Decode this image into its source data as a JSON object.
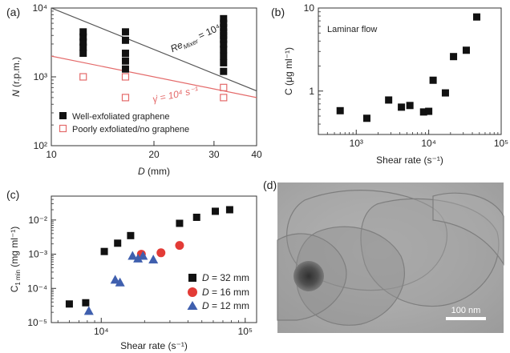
{
  "colors": {
    "black": "#111111",
    "red": "#e33b36",
    "blue": "#3f5fae",
    "pink": "#e46a6a",
    "grayLine": "#555555"
  },
  "panel_labels": [
    "(a)",
    "(b)",
    "(c)",
    "(d)"
  ],
  "chart_data": [
    {
      "id": "a",
      "type": "scatter",
      "xlabel": "D (mm)",
      "ylabel": "N (r.p.m.)",
      "xlog": true,
      "ylog": true,
      "xlim": [
        10,
        40
      ],
      "ylim": [
        100,
        10000
      ],
      "xticks": [
        10,
        20,
        30,
        40
      ],
      "xtick_labels": [
        "10",
        "20",
        "30",
        "40"
      ],
      "yticks": [
        100,
        1000,
        10000
      ],
      "ytick_labels": [
        "10²",
        "10³",
        "10⁴"
      ],
      "series": [
        {
          "name": "Well-exfoliated graphene",
          "marker": "square-filled",
          "color": "#111111",
          "points": [
            [
              12.4,
              2200
            ],
            [
              12.4,
              2700
            ],
            [
              12.4,
              3200
            ],
            [
              12.4,
              3800
            ],
            [
              12.4,
              4500
            ],
            [
              16.5,
              1300
            ],
            [
              16.5,
              1700
            ],
            [
              16.5,
              2200
            ],
            [
              16.5,
              3400
            ],
            [
              16.5,
              4500
            ],
            [
              32,
              1200
            ],
            [
              32,
              1600
            ],
            [
              32,
              2000
            ],
            [
              32,
              2500
            ],
            [
              32,
              3000
            ],
            [
              32,
              3500
            ],
            [
              32,
              4000
            ],
            [
              32,
              4500
            ],
            [
              32,
              5200
            ],
            [
              32,
              6000
            ],
            [
              32,
              7000
            ]
          ]
        },
        {
          "name": "Poorly exfoliated/no graphene",
          "marker": "square-open",
          "color": "#e46a6a",
          "points": [
            [
              12.4,
              1000
            ],
            [
              16.5,
              1000
            ],
            [
              16.5,
              500
            ],
            [
              32,
              700
            ],
            [
              32,
              500
            ]
          ]
        }
      ],
      "lines": [
        {
          "label": "Re_Mixer = 10⁴",
          "color": "#555555",
          "points": [
            [
              10,
              10000
            ],
            [
              40,
              625
            ]
          ]
        },
        {
          "label": "γ̇ = 10⁴ s⁻¹",
          "color": "#e46a6a",
          "points": [
            [
              10,
              2000
            ],
            [
              40,
              500
            ]
          ]
        }
      ],
      "annotations": {
        "re_main": "Re",
        "re_sub": "Mixer",
        "re_value": " = 10⁴",
        "gamma": "γ̇ = 10⁴ s⁻¹"
      }
    },
    {
      "id": "b",
      "type": "scatter",
      "xlabel": "Shear rate (s⁻¹)",
      "ylabel": "C (μg ml⁻¹)",
      "xlog": true,
      "ylog": true,
      "xlim": [
        300,
        100000
      ],
      "ylim": [
        0.3,
        10
      ],
      "xticks": [
        1000,
        10000,
        100000
      ],
      "xtick_labels": [
        "10³",
        "10⁴",
        "10⁵"
      ],
      "yticks": [
        1,
        10
      ],
      "ytick_labels": [
        "1",
        "10"
      ],
      "annotation": "Laminar flow",
      "series": [
        {
          "name": "",
          "marker": "square-filled",
          "color": "#111111",
          "points": [
            [
              600,
              0.58
            ],
            [
              1400,
              0.47
            ],
            [
              2800,
              0.78
            ],
            [
              4200,
              0.64
            ],
            [
              5500,
              0.67
            ],
            [
              8500,
              0.56
            ],
            [
              10000,
              0.57
            ],
            [
              11500,
              1.35
            ],
            [
              17000,
              0.95
            ],
            [
              22000,
              2.6
            ],
            [
              33000,
              3.1
            ],
            [
              46000,
              7.8
            ]
          ]
        }
      ]
    },
    {
      "id": "c",
      "type": "scatter",
      "xlabel": "Shear rate (s⁻¹)",
      "ylabel": "C1 min (mg ml⁻¹)",
      "ylabel_main": "C",
      "ylabel_sub": "1 min",
      "ylabel_unit": " (mg ml⁻¹)",
      "xlog": true,
      "ylog": true,
      "xlim": [
        4500,
        120000
      ],
      "ylim": [
        1e-05,
        0.05
      ],
      "xticks": [
        10000,
        100000
      ],
      "xtick_labels": [
        "10⁴",
        "10⁵"
      ],
      "yticks": [
        1e-05,
        0.0001,
        0.001,
        0.01
      ],
      "ytick_labels": [
        "10⁻⁵",
        "10⁻⁴",
        "10⁻³",
        "10⁻²"
      ],
      "series": [
        {
          "name": "D = 32 mm",
          "legend_var": "D",
          "legend_rest": " = 32 mm",
          "marker": "square-filled",
          "color": "#111111",
          "points": [
            [
              6000,
              3.5e-05
            ],
            [
              7800,
              3.8e-05
            ],
            [
              10500,
              0.0012
            ],
            [
              13000,
              0.0021
            ],
            [
              16000,
              0.0035
            ],
            [
              35000,
              0.008
            ],
            [
              46000,
              0.012
            ],
            [
              62000,
              0.018
            ],
            [
              78000,
              0.02
            ]
          ]
        },
        {
          "name": "D = 16 mm",
          "legend_var": "D",
          "legend_rest": " = 16 mm",
          "marker": "circle",
          "color": "#e33b36",
          "points": [
            [
              19000,
              0.001
            ],
            [
              26000,
              0.0011
            ],
            [
              35000,
              0.0018
            ]
          ]
        },
        {
          "name": "D = 12 mm",
          "legend_var": "D",
          "legend_rest": " = 12 mm",
          "marker": "triangle",
          "color": "#3f5fae",
          "points": [
            [
              8200,
              2.2e-05
            ],
            [
              12500,
              0.00018
            ],
            [
              13500,
              0.00015
            ],
            [
              16500,
              0.0009
            ],
            [
              18000,
              0.00075
            ],
            [
              19500,
              0.0009
            ],
            [
              23000,
              0.0007
            ]
          ]
        }
      ]
    }
  ],
  "micrograph": {
    "scale_bar": "100 nm"
  }
}
